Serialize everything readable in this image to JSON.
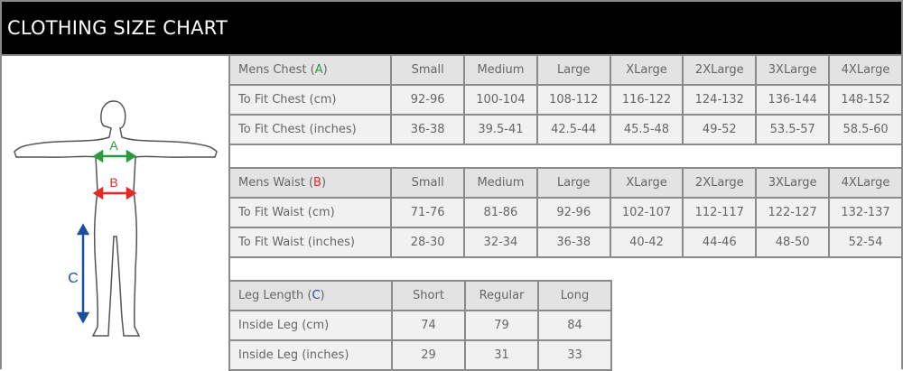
{
  "title": "CLOTHING SIZE CHART",
  "colors": {
    "A": "#2a9a3c",
    "B": "#e62828",
    "C": "#1a4fa0",
    "header_bg": "#000000"
  },
  "figure": {
    "labels": [
      "A",
      "B",
      "C"
    ]
  },
  "tables": [
    {
      "header": {
        "label": "Mens Chest (",
        "marker": "A",
        "close": ")"
      },
      "columns": [
        "Small",
        "Medium",
        "Large",
        "XLarge",
        "2XLarge",
        "3XLarge",
        "4XLarge"
      ],
      "rows": [
        {
          "label": "To Fit Chest (cm)",
          "values": [
            "92-96",
            "100-104",
            "108-112",
            "116-122",
            "124-132",
            "136-144",
            "148-152"
          ]
        },
        {
          "label": "To Fit Chest (inches)",
          "values": [
            "36-38",
            "39.5-41",
            "42.5-44",
            "45.5-48",
            "49-52",
            "53.5-57",
            "58.5-60"
          ]
        }
      ]
    },
    {
      "header": {
        "label": "Mens Waist (",
        "marker": "B",
        "close": ")"
      },
      "columns": [
        "Small",
        "Medium",
        "Large",
        "XLarge",
        "2XLarge",
        "3XLarge",
        "4XLarge"
      ],
      "rows": [
        {
          "label": "To Fit Waist (cm)",
          "values": [
            "71-76",
            "81-86",
            "92-96",
            "102-107",
            "112-117",
            "122-127",
            "132-137"
          ]
        },
        {
          "label": "To Fit Waist (inches)",
          "values": [
            "28-30",
            "32-34",
            "36-38",
            "40-42",
            "44-46",
            "48-50",
            "52-54"
          ]
        }
      ]
    },
    {
      "header": {
        "label": "Leg Length (",
        "marker": "C",
        "close": ")"
      },
      "columns": [
        "Short",
        "Regular",
        "Long"
      ],
      "rows": [
        {
          "label": "Inside Leg (cm)",
          "values": [
            "74",
            "79",
            "84"
          ]
        },
        {
          "label": "Inside Leg (inches)",
          "values": [
            "29",
            "31",
            "33"
          ]
        }
      ]
    }
  ]
}
